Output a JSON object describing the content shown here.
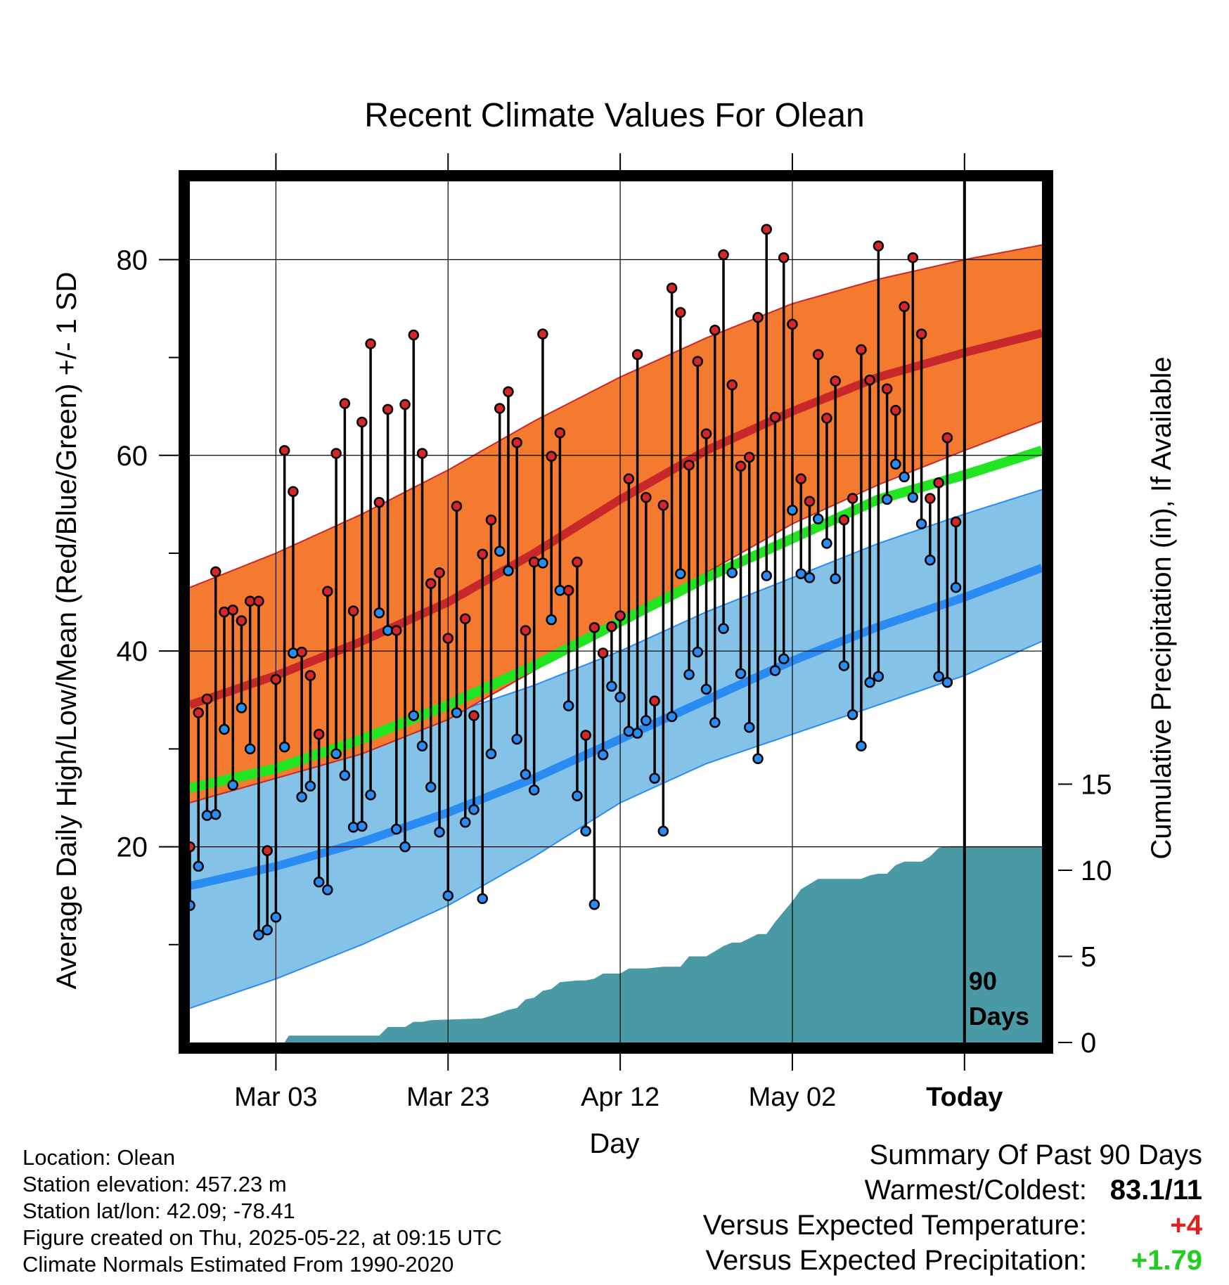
{
  "title": "Recent Climate Values For Olean",
  "xlabel": "Day",
  "ylabel_left": "Average Daily High/Low/Mean (Red/Blue/Green) +/- 1 SD",
  "ylabel_right": "Cumulative Precipitation (in), If Available",
  "marker_label": [
    "90",
    "Days"
  ],
  "x_ticks": [
    {
      "day": 10,
      "label": "Mar 03"
    },
    {
      "day": 30,
      "label": "Mar 23"
    },
    {
      "day": 50,
      "label": "Apr 12"
    },
    {
      "day": 70,
      "label": "May 02"
    },
    {
      "day": 90,
      "label": "Today"
    }
  ],
  "info": [
    "Location: Olean",
    "Station elevation: 457.23 m",
    "Station lat/lon: 42.09; -78.41",
    "Figure created on Thu, 2025-05-22, at 09:15 UTC",
    "Climate Normals Estimated From 1990-2020"
  ],
  "summary": {
    "heading": "Summary Of Past 90 Days",
    "rows": [
      {
        "label": "Warmest/Coldest:",
        "value": "83.1/11",
        "color": "#000000"
      },
      {
        "label": "Versus Expected Temperature:",
        "value": "+4",
        "color": "#e02020"
      },
      {
        "label": "Versus Expected Precipitation:",
        "value": "+1.79",
        "color": "#22cc22"
      }
    ]
  },
  "colors": {
    "high_band": "#f47a30",
    "high_mean": "#c8282a",
    "low_band": "#85c2e8",
    "low_mean": "#2a8cf2",
    "mean_line": "#22e522",
    "precip": "#4a9aa5",
    "high_dot": "#d62728",
    "low_dot": "#2a8cf2"
  },
  "chart_data": {
    "type": "line",
    "x_start_day": 0,
    "x_end_day": 99,
    "today_day": 90,
    "ylim_temp": [
      0,
      88
    ],
    "y_ticks_temp": [
      20,
      40,
      60,
      80
    ],
    "ylim_precip": [
      0,
      50
    ],
    "y_ticks_precip": [
      0,
      5,
      10,
      15
    ],
    "normals": {
      "days": [
        0,
        10,
        20,
        30,
        40,
        50,
        60,
        70,
        80,
        90,
        99
      ],
      "high_mean": [
        34.5,
        37.5,
        41,
        45,
        50,
        55.5,
        60.5,
        64.5,
        68,
        70.5,
        72.5
      ],
      "high_sd_upper": [
        46.5,
        50,
        54,
        58.5,
        63.5,
        68,
        72,
        75.5,
        78,
        80,
        81.5
      ],
      "high_sd_lower": [
        24.5,
        27,
        29.5,
        33,
        38,
        43,
        48,
        53,
        57,
        60.5,
        63.5
      ],
      "low_mean": [
        16,
        18,
        20.5,
        23.5,
        27,
        31,
        35,
        39,
        42.5,
        45.5,
        48.5
      ],
      "low_sd_upper": [
        27.5,
        29,
        31,
        33.5,
        36.5,
        40,
        44,
        47.5,
        51,
        54,
        56.5
      ],
      "low_sd_lower": [
        3.5,
        6.5,
        10,
        14,
        19,
        24.5,
        28.5,
        31.5,
        34.5,
        37.5,
        41
      ],
      "mean": [
        26,
        28,
        31,
        34.5,
        38.5,
        43,
        47.5,
        51.5,
        55.5,
        58,
        60.5
      ]
    },
    "daily_high": [
      20,
      33.7,
      35.1,
      48.1,
      44,
      44.2,
      43.1,
      45.1,
      45.1,
      19.6,
      37.1,
      60.5,
      56.3,
      39.9,
      37.5,
      31.5,
      46.1,
      60.2,
      65.3,
      44.1,
      63.4,
      71.4,
      55.2,
      64.7,
      42.1,
      65.2,
      72.3,
      60.2,
      46.9,
      48.0,
      41.3,
      54.8,
      43.3,
      33.4,
      49.9,
      53.4,
      64.8,
      66.5,
      61.3,
      42.1,
      49.1,
      72.4,
      59.9,
      62.3,
      46.2,
      49.1,
      31.4,
      42.4,
      39.8,
      42.5,
      43.6,
      57.6,
      70.3,
      55.7,
      34.9,
      54.9,
      77.1,
      74.6,
      59.0,
      69.6,
      62.2,
      72.8,
      80.5,
      67.2,
      58.9,
      59.8,
      74.1,
      83.1,
      63.9,
      80.2,
      73.4,
      57.6,
      55.3,
      70.3,
      63.8,
      67.6,
      53.4,
      55.6,
      70.8,
      67.7,
      81.4,
      66.8,
      64.6,
      75.2,
      80.2,
      72.4,
      55.6,
      57.2,
      61.8,
      53.2
    ],
    "daily_low": [
      14,
      18,
      23.2,
      23.3,
      32,
      26.3,
      34.2,
      30,
      11,
      11.5,
      12.8,
      30.2,
      39.8,
      25.1,
      26.2,
      16.4,
      15.6,
      29.5,
      27.3,
      22,
      22.1,
      25.3,
      43.9,
      42.1,
      21.8,
      20,
      33.4,
      30.3,
      26.1,
      21.5,
      15,
      33.7,
      22.5,
      23.8,
      14.7,
      29.5,
      50.2,
      48.2,
      31,
      27.4,
      25.8,
      49,
      43.2,
      46.2,
      34.4,
      25.2,
      21.6,
      14.1,
      29.4,
      36.4,
      35.3,
      31.8,
      31.6,
      32.9,
      27,
      21.6,
      33.3,
      47.9,
      37.6,
      39.9,
      36.1,
      32.7,
      42.3,
      48,
      37.7,
      32.2,
      29,
      47.7,
      38,
      39.2,
      54.4,
      47.9,
      47.5,
      53.5,
      51,
      47.4,
      38.5,
      33.5,
      30.3,
      36.8,
      37.4,
      55.5,
      59.1,
      57.8,
      55.7,
      53,
      49.3,
      37.4,
      36.8,
      46.5
    ],
    "precip_cumulative": {
      "days": [
        0,
        11,
        11.5,
        22,
        23,
        25,
        26,
        27,
        28,
        34,
        36,
        37,
        38,
        39,
        40,
        41,
        42,
        43,
        45,
        46,
        47,
        48,
        50,
        51,
        52,
        53,
        55,
        57,
        58,
        60,
        61,
        62,
        63,
        64,
        66,
        67,
        68,
        69,
        70,
        71,
        72,
        73,
        74,
        75,
        78,
        79,
        80,
        81,
        82,
        83,
        84,
        85,
        86,
        87,
        88,
        89,
        99
      ],
      "values": [
        0,
        0,
        0.4,
        0.4,
        0.9,
        0.9,
        1.2,
        1.2,
        1.3,
        1.4,
        1.7,
        1.9,
        2.0,
        2.5,
        2.6,
        3.0,
        3.1,
        3.5,
        3.6,
        3.6,
        3.7,
        4.0,
        4.0,
        4.3,
        4.3,
        4.3,
        4.4,
        4.4,
        5.0,
        5.0,
        5.3,
        5.6,
        5.8,
        5.8,
        6.3,
        6.3,
        7.0,
        7.6,
        8.2,
        8.9,
        9.2,
        9.5,
        9.5,
        9.5,
        9.5,
        9.7,
        9.8,
        9.8,
        10.3,
        10.5,
        10.5,
        10.5,
        10.8,
        11.3,
        11.4,
        11.4,
        11.4
      ]
    }
  }
}
